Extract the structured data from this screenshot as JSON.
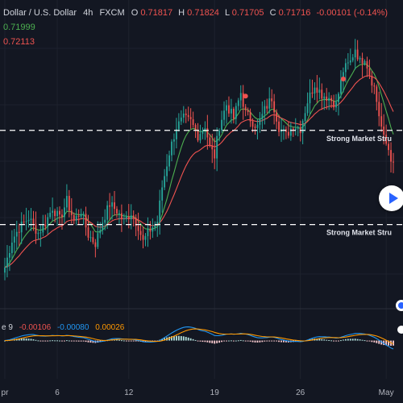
{
  "header": {
    "symbol": "Dollar / U.S. Dollar",
    "interval": "4h",
    "exchange": "FXCM",
    "o_label": "O",
    "o_value": "0.71817",
    "h_label": "H",
    "h_value": "0.71824",
    "l_label": "L",
    "l_value": "0.71705",
    "c_label": "C",
    "c_value": "0.71716",
    "change": "-0.00101 (-0.14%)",
    "ma1_value": "0.71999",
    "ma2_value": "0.72113"
  },
  "colors": {
    "background": "#131722",
    "up": "#26a69a",
    "down": "#ef5350",
    "ma_fast": "#4caf50",
    "ma_slow": "#ef5350",
    "macd_line": "#2196f3",
    "signal_line": "#ff9800",
    "hist_up": "#b2dfdb",
    "hist_down": "#ffcdd2",
    "header_text": "#d1d4dc",
    "grid": "#1e222d"
  },
  "annotations": [
    {
      "text": "Strong Market Stru",
      "level": 0.7193
    },
    {
      "text": "Strong Market Stru",
      "level": 0.7138
    }
  ],
  "macd": {
    "label": "e 9",
    "hist_value": "-0.00106",
    "macd_value": "-0.00080",
    "signal_value": "0.00026"
  },
  "x_axis": {
    "ticks": [
      {
        "label": "pr",
        "pos": 0
      },
      {
        "label": "6",
        "pos": 22
      },
      {
        "label": "12",
        "pos": 52
      },
      {
        "label": "19",
        "pos": 88
      },
      {
        "label": "26",
        "pos": 124
      },
      {
        "label": "May",
        "pos": 160
      }
    ]
  },
  "chart_data": {
    "type": "candlestick",
    "title": "",
    "ylim": [
      0.7095,
      0.7255
    ],
    "x_range": [
      0,
      163
    ],
    "series": [
      {
        "name": "",
        "color": "#4caf50",
        "period": 9
      },
      {
        "name": "",
        "color": "#ef5350",
        "period": 21
      }
    ],
    "anchors": [
      [
        0,
        0.7113
      ],
      [
        3,
        0.7129
      ],
      [
        6,
        0.7136
      ],
      [
        10,
        0.7142
      ],
      [
        14,
        0.7133
      ],
      [
        17,
        0.7139
      ],
      [
        20,
        0.7148
      ],
      [
        23,
        0.7141
      ],
      [
        26,
        0.7152
      ],
      [
        29,
        0.714
      ],
      [
        32,
        0.7146
      ],
      [
        35,
        0.7132
      ],
      [
        38,
        0.7127
      ],
      [
        41,
        0.714
      ],
      [
        44,
        0.715
      ],
      [
        47,
        0.7146
      ],
      [
        50,
        0.714
      ],
      [
        53,
        0.7145
      ],
      [
        56,
        0.7137
      ],
      [
        58,
        0.7128
      ],
      [
        61,
        0.7135
      ],
      [
        64,
        0.714
      ],
      [
        66,
        0.716
      ],
      [
        69,
        0.718
      ],
      [
        72,
        0.7195
      ],
      [
        75,
        0.72
      ],
      [
        78,
        0.7198
      ],
      [
        81,
        0.719
      ],
      [
        84,
        0.7196
      ],
      [
        86,
        0.7183
      ],
      [
        88,
        0.7178
      ],
      [
        90,
        0.7196
      ],
      [
        93,
        0.7208
      ],
      [
        96,
        0.72
      ],
      [
        99,
        0.7215
      ],
      [
        101,
        0.7203
      ],
      [
        104,
        0.7198
      ],
      [
        106,
        0.7195
      ],
      [
        109,
        0.7205
      ],
      [
        112,
        0.7212
      ],
      [
        115,
        0.7195
      ],
      [
        118,
        0.719
      ],
      [
        121,
        0.7196
      ],
      [
        124,
        0.7194
      ],
      [
        127,
        0.721
      ],
      [
        130,
        0.722
      ],
      [
        133,
        0.7214
      ],
      [
        136,
        0.7212
      ],
      [
        139,
        0.7208
      ],
      [
        142,
        0.7228
      ],
      [
        145,
        0.7233
      ],
      [
        147,
        0.7241
      ],
      [
        149,
        0.7233
      ],
      [
        151,
        0.7236
      ],
      [
        153,
        0.7226
      ],
      [
        155,
        0.7218
      ],
      [
        157,
        0.7202
      ],
      [
        159,
        0.7188
      ],
      [
        161,
        0.7182
      ],
      [
        163,
        0.7172
      ]
    ],
    "markers": [
      {
        "pos": 101,
        "price": 0.7213,
        "color": "#ef5350"
      },
      {
        "pos": 142,
        "price": 0.7223,
        "color": "#ef5350"
      }
    ],
    "macd_range": [
      -0.0025,
      0.003
    ]
  }
}
